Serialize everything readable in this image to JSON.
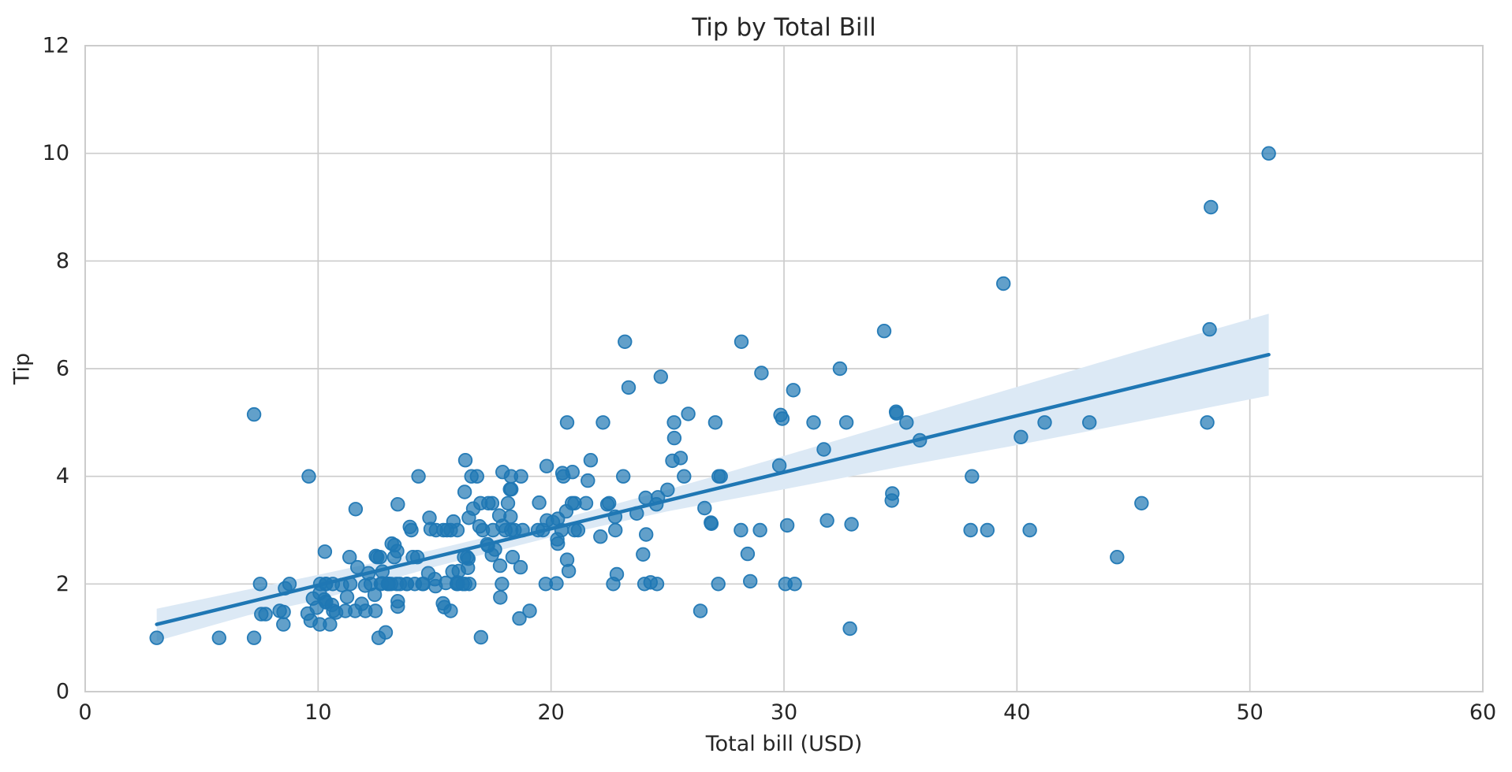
{
  "colors": {
    "background": "#ffffff",
    "text": "#262626",
    "grid": "#cccccc",
    "spine": "#cccccc",
    "point_fill": "rgba(31,119,180,0.7)",
    "point_stroke": "rgba(31,119,180,0.95)",
    "regression_line": "#1f77b4",
    "confidence_band": "#dce9f5"
  },
  "chart_data": {
    "type": "scatter",
    "title": "Tip by Total Bill",
    "xlabel": "Total bill (USD)",
    "ylabel": "Tip",
    "xlim": [
      0,
      60
    ],
    "ylim": [
      0,
      12
    ],
    "xticks": [
      0,
      10,
      20,
      30,
      40,
      50,
      60
    ],
    "yticks": [
      0,
      2,
      4,
      6,
      8,
      10,
      12
    ],
    "grid": true,
    "legend": "none",
    "points": [
      [
        16.99,
        1.01
      ],
      [
        10.34,
        1.66
      ],
      [
        21.01,
        3.5
      ],
      [
        23.68,
        3.31
      ],
      [
        24.59,
        3.61
      ],
      [
        25.29,
        4.71
      ],
      [
        8.77,
        2
      ],
      [
        26.88,
        3.12
      ],
      [
        15.04,
        1.96
      ],
      [
        14.78,
        3.23
      ],
      [
        10.27,
        1.71
      ],
      [
        35.26,
        5
      ],
      [
        15.42,
        1.57
      ],
      [
        18.43,
        3
      ],
      [
        14.83,
        3.02
      ],
      [
        21.58,
        3.92
      ],
      [
        10.33,
        1.67
      ],
      [
        16.29,
        3.71
      ],
      [
        16.97,
        3.5
      ],
      [
        20.65,
        3.35
      ],
      [
        17.92,
        4.08
      ],
      [
        20.29,
        2.75
      ],
      [
        15.77,
        2.23
      ],
      [
        39.42,
        7.58
      ],
      [
        19.82,
        3.18
      ],
      [
        17.81,
        2.34
      ],
      [
        13.37,
        2
      ],
      [
        12.69,
        2
      ],
      [
        21.7,
        4.3
      ],
      [
        19.65,
        3
      ],
      [
        9.55,
        1.45
      ],
      [
        18.35,
        2.5
      ],
      [
        15.06,
        3
      ],
      [
        20.69,
        2.45
      ],
      [
        17.78,
        3.27
      ],
      [
        24.06,
        3.6
      ],
      [
        16.31,
        2
      ],
      [
        16.93,
        3.07
      ],
      [
        18.69,
        2.31
      ],
      [
        31.27,
        5
      ],
      [
        16.04,
        2.24
      ],
      [
        17.46,
        2.54
      ],
      [
        13.94,
        3.06
      ],
      [
        9.68,
        1.32
      ],
      [
        30.4,
        5.6
      ],
      [
        18.29,
        3
      ],
      [
        22.23,
        5
      ],
      [
        32.4,
        6
      ],
      [
        28.55,
        2.05
      ],
      [
        18.04,
        3
      ],
      [
        12.54,
        2.5
      ],
      [
        10.29,
        2.6
      ],
      [
        34.81,
        5.2
      ],
      [
        9.94,
        1.56
      ],
      [
        25.56,
        4.34
      ],
      [
        19.49,
        3.51
      ],
      [
        38.01,
        3
      ],
      [
        26.41,
        1.5
      ],
      [
        11.24,
        1.76
      ],
      [
        48.27,
        6.73
      ],
      [
        20.29,
        3.21
      ],
      [
        13.81,
        2
      ],
      [
        11.02,
        1.98
      ],
      [
        18.29,
        3.76
      ],
      [
        17.59,
        2.64
      ],
      [
        20.08,
        3.15
      ],
      [
        16.45,
        2.47
      ],
      [
        3.07,
        1
      ],
      [
        20.23,
        2.01
      ],
      [
        15.01,
        2.09
      ],
      [
        12.02,
        1.97
      ],
      [
        17.07,
        3
      ],
      [
        26.86,
        3.14
      ],
      [
        25.28,
        5
      ],
      [
        14.73,
        2.2
      ],
      [
        10.51,
        1.25
      ],
      [
        17.92,
        3.08
      ],
      [
        27.2,
        4
      ],
      [
        22.76,
        3
      ],
      [
        17.29,
        2.71
      ],
      [
        19.44,
        3
      ],
      [
        16.66,
        3.4
      ],
      [
        10.07,
        1.83
      ],
      [
        32.68,
        5
      ],
      [
        15.98,
        2.03
      ],
      [
        34.83,
        5.17
      ],
      [
        13.03,
        2
      ],
      [
        18.28,
        4
      ],
      [
        24.71,
        5.85
      ],
      [
        21.16,
        3
      ],
      [
        28.97,
        3
      ],
      [
        22.49,
        3.5
      ],
      [
        5.75,
        1
      ],
      [
        16.32,
        4.3
      ],
      [
        22.75,
        3.25
      ],
      [
        40.17,
        4.73
      ],
      [
        27.28,
        4
      ],
      [
        12.03,
        1.5
      ],
      [
        21.01,
        3
      ],
      [
        12.46,
        1.5
      ],
      [
        11.35,
        2.5
      ],
      [
        15.38,
        3
      ],
      [
        44.3,
        2.5
      ],
      [
        22.42,
        3.48
      ],
      [
        20.92,
        4.08
      ],
      [
        15.36,
        1.64
      ],
      [
        20.49,
        4.06
      ],
      [
        25.21,
        4.29
      ],
      [
        18.24,
        3.76
      ],
      [
        14.31,
        4
      ],
      [
        14,
        3
      ],
      [
        7.25,
        1
      ],
      [
        38.07,
        4
      ],
      [
        23.95,
        2.55
      ],
      [
        25.71,
        4
      ],
      [
        17.31,
        3.5
      ],
      [
        29.93,
        5.07
      ],
      [
        10.65,
        1.5
      ],
      [
        12.43,
        1.8
      ],
      [
        24.08,
        2.92
      ],
      [
        11.69,
        2.31
      ],
      [
        13.42,
        1.68
      ],
      [
        14.26,
        2.5
      ],
      [
        15.95,
        2
      ],
      [
        12.48,
        2.52
      ],
      [
        29.8,
        4.2
      ],
      [
        8.52,
        1.48
      ],
      [
        14.52,
        2
      ],
      [
        11.38,
        2
      ],
      [
        22.82,
        2.18
      ],
      [
        19.08,
        1.5
      ],
      [
        20.27,
        2.83
      ],
      [
        11.17,
        1.5
      ],
      [
        12.26,
        2
      ],
      [
        18.26,
        3.25
      ],
      [
        8.51,
        1.25
      ],
      [
        10.33,
        2
      ],
      [
        14.15,
        2
      ],
      [
        16,
        2
      ],
      [
        13.16,
        2.75
      ],
      [
        17.47,
        3.5
      ],
      [
        34.3,
        6.7
      ],
      [
        41.19,
        5
      ],
      [
        27.05,
        5
      ],
      [
        16.43,
        2.3
      ],
      [
        8.35,
        1.5
      ],
      [
        18.64,
        1.36
      ],
      [
        11.87,
        1.63
      ],
      [
        9.78,
        1.73
      ],
      [
        7.51,
        2
      ],
      [
        14.07,
        2.5
      ],
      [
        13.13,
        2
      ],
      [
        17.26,
        2.74
      ],
      [
        24.55,
        2
      ],
      [
        19.77,
        2
      ],
      [
        29.85,
        5.14
      ],
      [
        48.17,
        5
      ],
      [
        25,
        3.75
      ],
      [
        13.39,
        2.61
      ],
      [
        16.49,
        2
      ],
      [
        21.5,
        3.5
      ],
      [
        12.66,
        2.5
      ],
      [
        16.21,
        2
      ],
      [
        13.81,
        2
      ],
      [
        17.51,
        3
      ],
      [
        24.52,
        3.48
      ],
      [
        20.76,
        2.24
      ],
      [
        31.71,
        4.5
      ],
      [
        10.59,
        1.61
      ],
      [
        10.63,
        2
      ],
      [
        50.81,
        10
      ],
      [
        15.81,
        3.16
      ],
      [
        7.25,
        5.15
      ],
      [
        31.85,
        3.18
      ],
      [
        16.82,
        4
      ],
      [
        32.9,
        3.11
      ],
      [
        17.89,
        2
      ],
      [
        14.48,
        2
      ],
      [
        9.6,
        4
      ],
      [
        34.63,
        3.55
      ],
      [
        34.65,
        3.68
      ],
      [
        23.33,
        5.65
      ],
      [
        45.35,
        3.5
      ],
      [
        23.17,
        6.5
      ],
      [
        40.55,
        3
      ],
      [
        20.69,
        5
      ],
      [
        20.9,
        3.5
      ],
      [
        30.46,
        2
      ],
      [
        18.15,
        3.5
      ],
      [
        23.1,
        4
      ],
      [
        15.69,
        1.5
      ],
      [
        19.81,
        4.19
      ],
      [
        28.44,
        2.56
      ],
      [
        15.48,
        2.02
      ],
      [
        16.58,
        4
      ],
      [
        7.56,
        1.44
      ],
      [
        10.34,
        2
      ],
      [
        43.11,
        5
      ],
      [
        13,
        2
      ],
      [
        13.51,
        2
      ],
      [
        18.71,
        4
      ],
      [
        12.74,
        2.01
      ],
      [
        13,
        2
      ],
      [
        16.4,
        2.5
      ],
      [
        20.53,
        4
      ],
      [
        16.47,
        3.23
      ],
      [
        26.59,
        3.41
      ],
      [
        38.73,
        3
      ],
      [
        24.27,
        2.03
      ],
      [
        12.76,
        2.23
      ],
      [
        30.06,
        2
      ],
      [
        25.89,
        5.16
      ],
      [
        48.33,
        9
      ],
      [
        13.27,
        2.5
      ],
      [
        28.17,
        6.5
      ],
      [
        12.9,
        1.1
      ],
      [
        28.15,
        3
      ],
      [
        11.59,
        1.5
      ],
      [
        7.74,
        1.44
      ],
      [
        30.14,
        3.09
      ],
      [
        12.16,
        2.2
      ],
      [
        13.42,
        3.48
      ],
      [
        8.58,
        1.92
      ],
      [
        15.98,
        3
      ],
      [
        13.42,
        1.58
      ],
      [
        16.27,
        2.5
      ],
      [
        10.09,
        2
      ],
      [
        20.45,
        3
      ],
      [
        13.28,
        2.72
      ],
      [
        22.12,
        2.88
      ],
      [
        24.01,
        2
      ],
      [
        15.69,
        3
      ],
      [
        11.61,
        3.39
      ],
      [
        10.77,
        1.47
      ],
      [
        15.53,
        3
      ],
      [
        10.07,
        1.25
      ],
      [
        12.6,
        1
      ],
      [
        32.83,
        1.17
      ],
      [
        35.83,
        4.67
      ],
      [
        29.03,
        5.92
      ],
      [
        27.18,
        2
      ],
      [
        22.67,
        2
      ],
      [
        17.82,
        1.75
      ],
      [
        18.78,
        3
      ]
    ],
    "regression_line": {
      "x": [
        3.07,
        50.81
      ],
      "y": [
        1.25,
        6.26
      ]
    },
    "confidence_band": {
      "x": [
        3.07,
        7.0,
        10.0,
        15.0,
        20.0,
        25.0,
        30.0,
        35.0,
        40.0,
        45.0,
        50.81
      ],
      "upper": [
        1.54,
        1.9,
        2.17,
        2.64,
        3.16,
        3.75,
        4.38,
        5.02,
        5.66,
        6.3,
        7.02
      ],
      "lower": [
        0.94,
        1.42,
        1.7,
        2.32,
        2.87,
        3.35,
        3.76,
        4.18,
        4.58,
        5.0,
        5.5
      ]
    }
  }
}
